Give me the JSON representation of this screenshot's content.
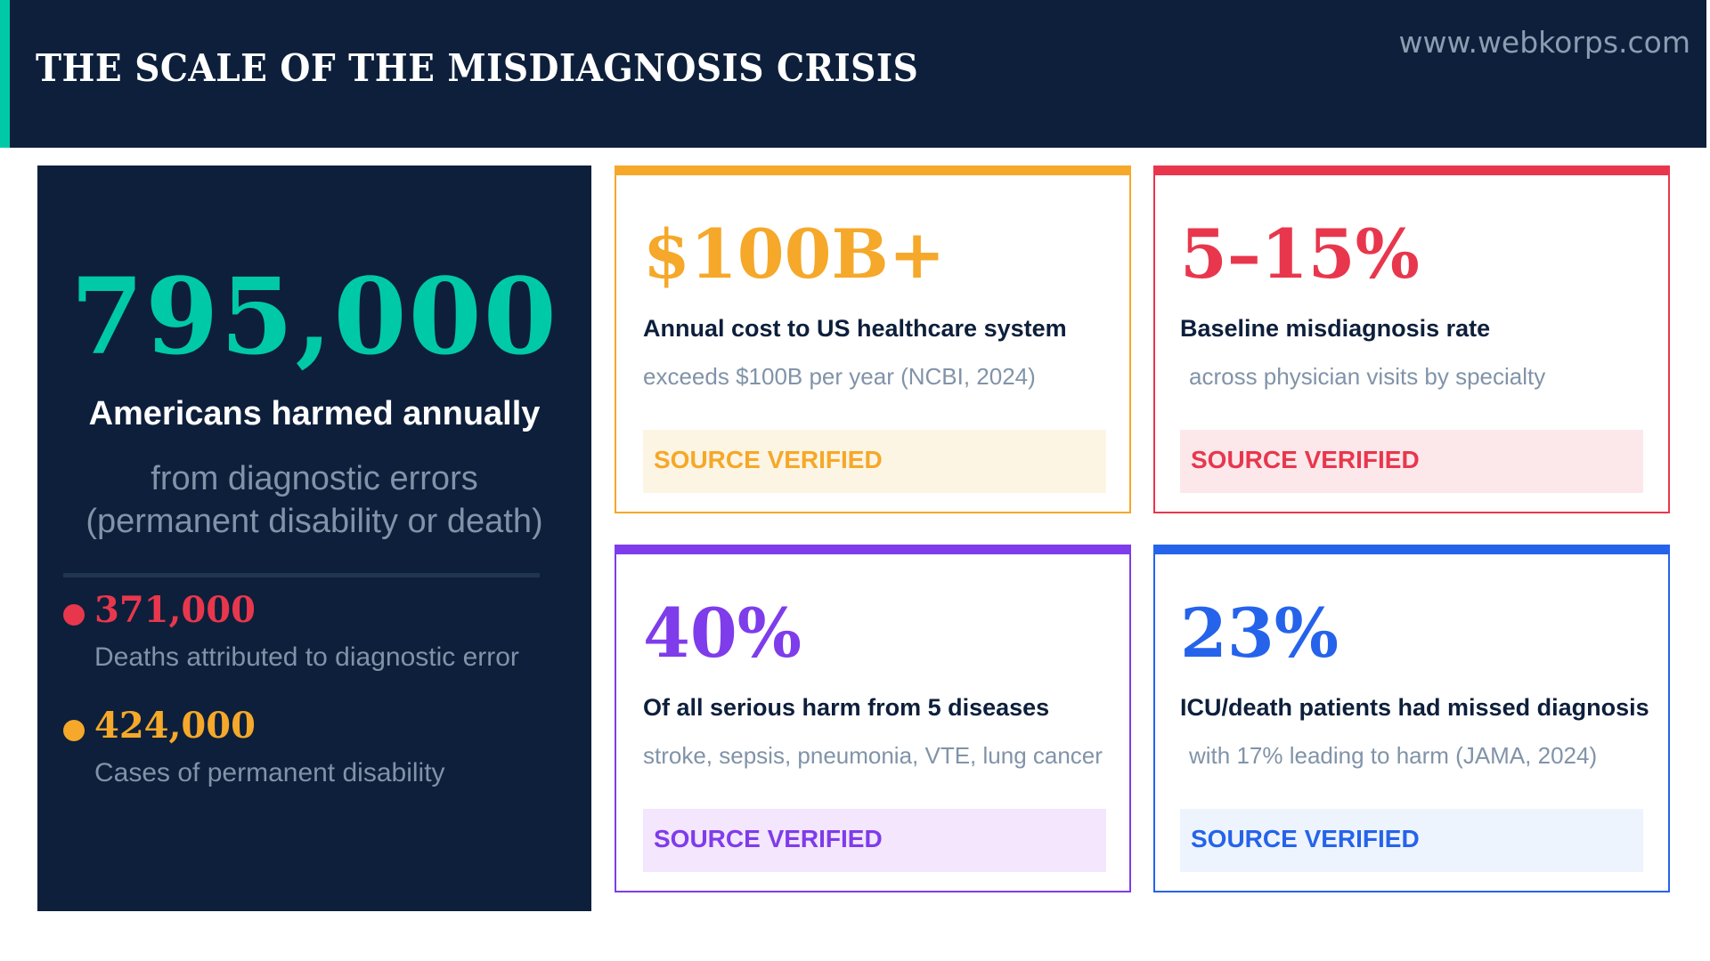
{
  "header": {
    "title": "THE SCALE OF THE MISDIAGNOSIS CRISIS",
    "url": "www.webkorps.com"
  },
  "colors": {
    "navy": "#0d1f3b",
    "teal": "#00c9a7",
    "orange": "#f5a829",
    "red": "#e8374d",
    "purple": "#7e3ceb",
    "blue": "#2563eb",
    "muted": "#8193a8"
  },
  "hero": {
    "number": "795,000",
    "label": "Americans harmed annually",
    "sub_line1": "from diagnostic errors",
    "sub_line2": "(permanent disability or death)",
    "stats": [
      {
        "number": "371,000",
        "desc": "Deaths attributed to diagnostic error",
        "color": "#e8374d"
      },
      {
        "number": "424,000",
        "desc": "Cases of permanent disability",
        "color": "#f5a829"
      }
    ]
  },
  "cards": [
    {
      "value": "$100B+",
      "label": "Annual cost to US healthcare system",
      "sub": "exceeds $100B per year (NCBI, 2024)",
      "badge": "SOURCE VERIFIED",
      "color": "#f5a829",
      "badge_bg": "#fdf5e4"
    },
    {
      "value": "5–15%",
      "label": "Baseline misdiagnosis rate",
      "sub": "across physician visits by specialty",
      "badge": "SOURCE VERIFIED",
      "color": "#e8374d",
      "badge_bg": "#fce8eb"
    },
    {
      "value": "40%",
      "label": "Of all serious harm from 5 diseases",
      "sub": "stroke, sepsis, pneumonia, VTE, lung cancer",
      "badge": "SOURCE VERIFIED",
      "color": "#7e3ceb",
      "badge_bg": "#f3e6fd"
    },
    {
      "value": "23%",
      "label": "ICU/death patients had missed diagnosis",
      "sub": "with 17% leading to harm (JAMA, 2024)",
      "badge": "SOURCE VERIFIED",
      "color": "#2563eb",
      "badge_bg": "#eef4fe"
    }
  ]
}
